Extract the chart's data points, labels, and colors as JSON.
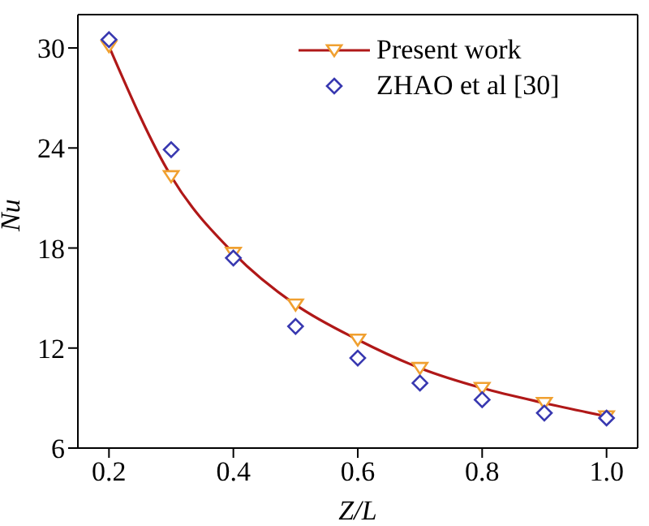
{
  "chart_data": {
    "type": "line",
    "xlabel": "Z/L",
    "ylabel": "Nu",
    "xlim": [
      0.15,
      1.05
    ],
    "ylim": [
      6,
      32
    ],
    "xticks": [
      {
        "value": 0.2,
        "label": "0.2"
      },
      {
        "value": 0.4,
        "label": "0.4"
      },
      {
        "value": 0.6,
        "label": "0.6"
      },
      {
        "value": 0.8,
        "label": "0.8"
      },
      {
        "value": 1.0,
        "label": "1.0"
      }
    ],
    "yticks": [
      6,
      12,
      18,
      24,
      30
    ],
    "x": [
      0.2,
      0.3,
      0.4,
      0.5,
      0.6,
      0.7,
      0.8,
      0.9,
      1.0
    ],
    "grid": false,
    "legend": "top right",
    "series": [
      {
        "name": "Present work",
        "color": "#b01818",
        "colors": [
          "#f0a030",
          "#f0a030",
          "#f0a030",
          "#f0a030",
          "#f0a030",
          "#f0a030",
          "#f0a030",
          "#f0a030",
          "#f0a030"
        ],
        "marker": "triangle",
        "values": [
          30.1,
          22.3,
          17.7,
          14.6,
          12.5,
          10.8,
          9.6,
          8.7,
          7.9
        ]
      },
      {
        "name": "ZHAO et al [30]",
        "type": "scatter",
        "color": "#3838b0",
        "marker": "diamond",
        "values": [
          30.5,
          23.9,
          17.4,
          13.3,
          11.4,
          9.9,
          8.9,
          8.1,
          7.8
        ]
      }
    ]
  }
}
